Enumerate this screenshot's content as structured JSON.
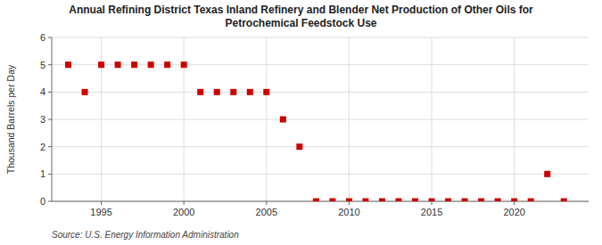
{
  "chart_data": {
    "type": "scatter",
    "title": "Annual Refining District Texas Inland Refinery and Blender Net Production of Other Oils for\nPetrochemical Feedstock Use",
    "ylabel": "Thousand Barrels per Day",
    "source": "Source: U.S. Energy Information Administration",
    "x": [
      1993,
      1994,
      1995,
      1996,
      1997,
      1998,
      1999,
      2000,
      2001,
      2002,
      2003,
      2004,
      2005,
      2006,
      2007,
      2008,
      2009,
      2010,
      2011,
      2012,
      2013,
      2014,
      2015,
      2016,
      2017,
      2018,
      2019,
      2020,
      2021,
      2022,
      2023
    ],
    "values": [
      5,
      4,
      5,
      5,
      5,
      5,
      5,
      5,
      4,
      4,
      4,
      4,
      4,
      3,
      2,
      0,
      0,
      0,
      0,
      0,
      0,
      0,
      0,
      0,
      0,
      0,
      0,
      0,
      0,
      1,
      0
    ],
    "color": "#cc0000",
    "marker": "square",
    "xlim": [
      1992,
      2024.5
    ],
    "ylim": [
      0,
      6
    ],
    "xticks": [
      1995,
      2000,
      2005,
      2010,
      2015,
      2020
    ],
    "yticks": [
      0,
      1,
      2,
      3,
      4,
      5,
      6
    ],
    "grid": true
  }
}
